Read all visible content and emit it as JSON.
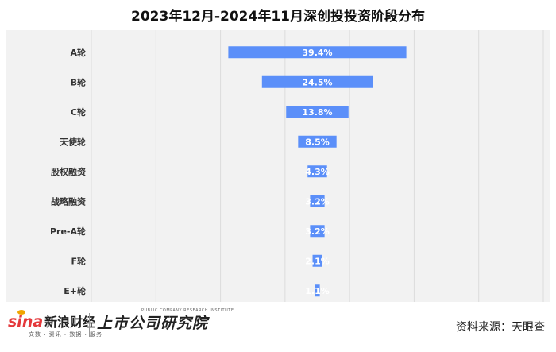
{
  "title": "2023年12月-2024年11月深创投投资阶段分布",
  "source": "资料来源：天眼查",
  "branding": {
    "sina_mark": "sina",
    "sina_name": "新浪财经",
    "sina_tagline": "文数 · 资讯 · 数据 · 服务",
    "institute_name": "上市公司研究院",
    "institute_en": "PUBLIC COMPANY RESEARCH INSTITUTE"
  },
  "colors": {
    "bar": "#5b8ff9",
    "panel": "#f2f2f2",
    "grid": "#dcdcdc",
    "label": "#ffffff",
    "category": "#333333"
  },
  "chart_data": {
    "type": "bar",
    "orientation": "horizontal",
    "layout": "funnel-centered",
    "title": "2023年12月-2024年11月深创投投资阶段分布",
    "categories": [
      "A轮",
      "B轮",
      "C轮",
      "天使轮",
      "股权融资",
      "战略融资",
      "Pre-A轮",
      "F轮",
      "E+轮"
    ],
    "values": [
      39.4,
      24.5,
      13.8,
      8.5,
      4.3,
      3.2,
      3.2,
      2.1,
      1.1
    ],
    "labels": [
      "39.4%",
      "24.5%",
      "13.8%",
      "8.5%",
      "4.3%",
      "3.2%",
      "3.2%",
      "2.1%",
      "1.1%"
    ],
    "value_unit": "%",
    "xlim": [
      0,
      100
    ],
    "grid": true,
    "legend": "none"
  }
}
